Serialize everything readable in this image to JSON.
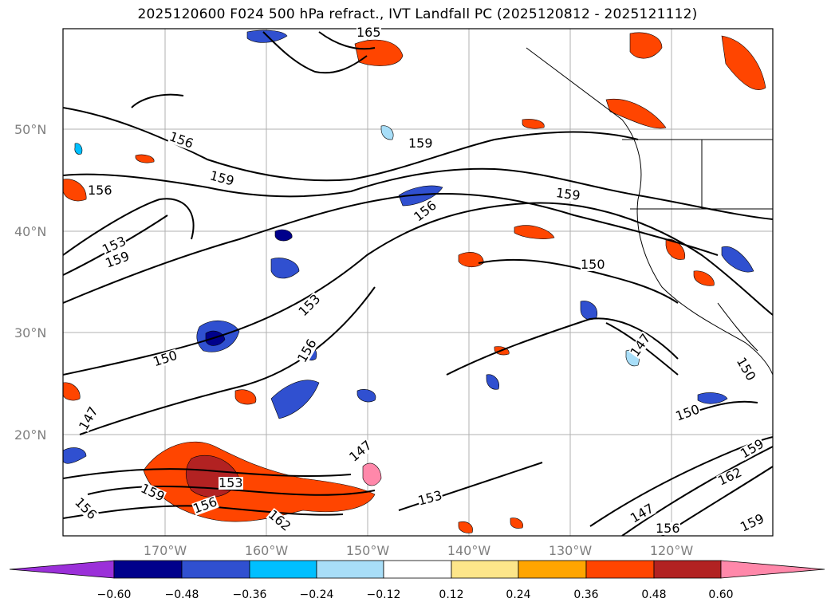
{
  "title": "2025120600 F024 500 hPa refract., IVT Landfall PC (2025120812 - 2025121112)",
  "map": {
    "lat_labels": [
      "50°N",
      "40°N",
      "30°N",
      "20°N"
    ],
    "lon_labels": [
      "170°W",
      "160°W",
      "150°W",
      "140°W",
      "130°W",
      "120°W"
    ],
    "contour_labels": [
      "165",
      "156",
      "159",
      "159",
      "159",
      "156",
      "153",
      "159",
      "156",
      "153",
      "150",
      "147",
      "156",
      "150",
      "147",
      "147",
      "150",
      "153",
      "156",
      "159",
      "162",
      "150",
      "156",
      "162",
      "159",
      "153",
      "147",
      "159",
      "156"
    ]
  },
  "colorbar": {
    "ticks": [
      "−0.60",
      "−0.48",
      "−0.36",
      "−0.24",
      "−0.12",
      "0.12",
      "0.24",
      "0.36",
      "0.48",
      "0.60"
    ],
    "colors": [
      "#9b30d9",
      "#00008b",
      "#3050d0",
      "#00bfff",
      "#a8def8",
      "#ffffff",
      "#fde68a",
      "#ffa500",
      "#ff4500",
      "#b22222",
      "#ff88aa"
    ]
  }
}
